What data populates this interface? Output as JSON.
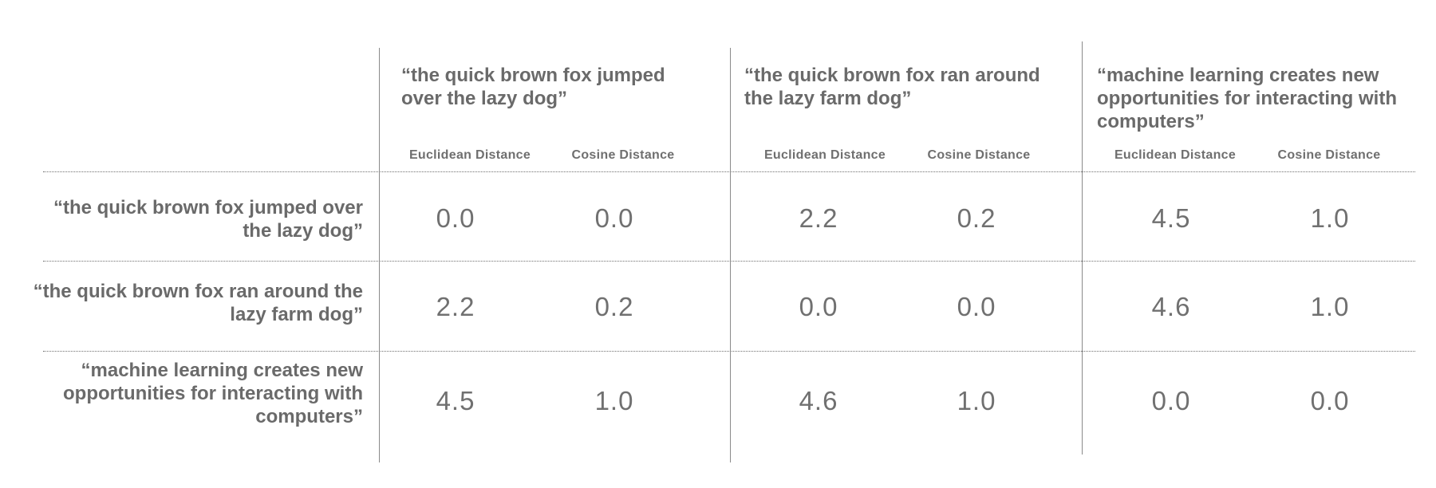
{
  "columns": [
    {
      "title": "“the quick brown fox jumped over the lazy dog”",
      "euclidean_label": "Euclidean Distance",
      "cosine_label": "Cosine Distance"
    },
    {
      "title": "“the quick brown fox ran around the lazy farm dog”",
      "euclidean_label": "Euclidean Distance",
      "cosine_label": "Cosine Distance"
    },
    {
      "title": "“machine learning creates new opportunities for interacting with computers”",
      "euclidean_label": "Euclidean Distance",
      "cosine_label": "Cosine Distance"
    }
  ],
  "rows": [
    {
      "label": "“the quick brown fox jumped over the lazy dog”",
      "values": [
        "0.0",
        "0.0",
        "2.2",
        "0.2",
        "4.5",
        "1.0"
      ]
    },
    {
      "label": "“the quick brown fox ran around the lazy farm dog”",
      "values": [
        "2.2",
        "0.2",
        "0.0",
        "0.0",
        "4.6",
        "1.0"
      ]
    },
    {
      "label": "“machine learning creates new opportunities for interacting with computers”",
      "values": [
        "4.5",
        "1.0",
        "4.6",
        "1.0",
        "0.0",
        "0.0"
      ]
    }
  ]
}
